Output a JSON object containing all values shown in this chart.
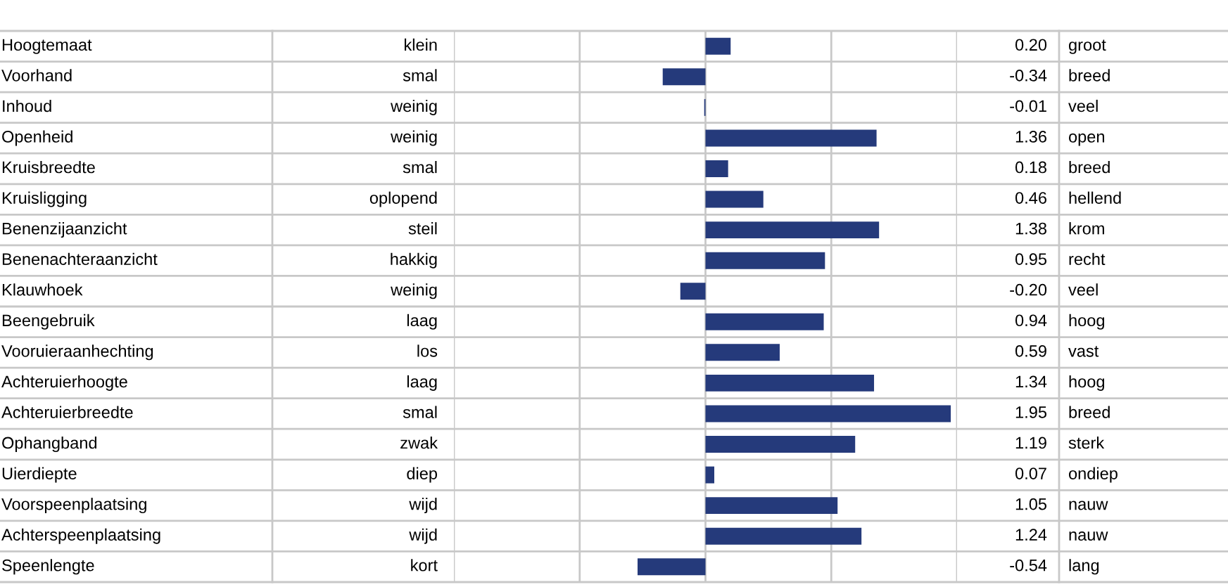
{
  "chart_data": {
    "type": "bar",
    "orientation": "horizontal",
    "categories": [
      "Hoogtemaat",
      "Voorhand",
      "Inhoud",
      "Openheid",
      "Kruisbreedte",
      "Kruisligging",
      "Benenzijaanzicht",
      "Benenachteraanzicht",
      "Klauwhoek",
      "Beengebruik",
      "Vooruieraanhechting",
      "Achteruierhoogte",
      "Achteruierbreedte",
      "Ophangband",
      "Uierdiepte",
      "Voorspeenplaatsing",
      "Achterspeenplaatsing",
      "Speenlengte"
    ],
    "values": [
      0.2,
      -0.34,
      -0.01,
      1.36,
      0.18,
      0.46,
      1.38,
      0.95,
      -0.2,
      0.94,
      0.59,
      1.34,
      1.95,
      1.19,
      0.07,
      1.05,
      1.24,
      -0.54
    ],
    "value_labels": [
      "0.20",
      "-0.34",
      "-0.01",
      "1.36",
      "0.18",
      "0.46",
      "1.38",
      "0.95",
      "-0.20",
      "0.94",
      "0.59",
      "1.34",
      "1.95",
      "1.19",
      "0.07",
      "1.05",
      "1.24",
      "-0.54"
    ],
    "color": "#253a7b",
    "xlim": [
      -2,
      2
    ],
    "xticks": [
      {
        "value": -2,
        "label": null
      },
      {
        "value": -1,
        "label": null
      },
      {
        "value": 0,
        "label": null
      },
      {
        "value": 1,
        "label": null
      },
      {
        "value": 2,
        "label": null
      }
    ],
    "grid": "x",
    "annotations": [
      "klein",
      "groot",
      "smal",
      "breed",
      "weinig",
      "veel",
      "weinig",
      "open",
      "smal",
      "breed",
      "oplopend",
      "hellend",
      "steil",
      "krom",
      "hakkig",
      "recht",
      "weinig",
      "veel",
      "laag",
      "hoog",
      "los",
      "vast",
      "laag",
      "hoog",
      "smal",
      "breed",
      "zwak",
      "sterk",
      "diep",
      "ondiep",
      "wijd",
      "nauw",
      "wijd",
      "nauw",
      "kort",
      "lang"
    ]
  }
}
